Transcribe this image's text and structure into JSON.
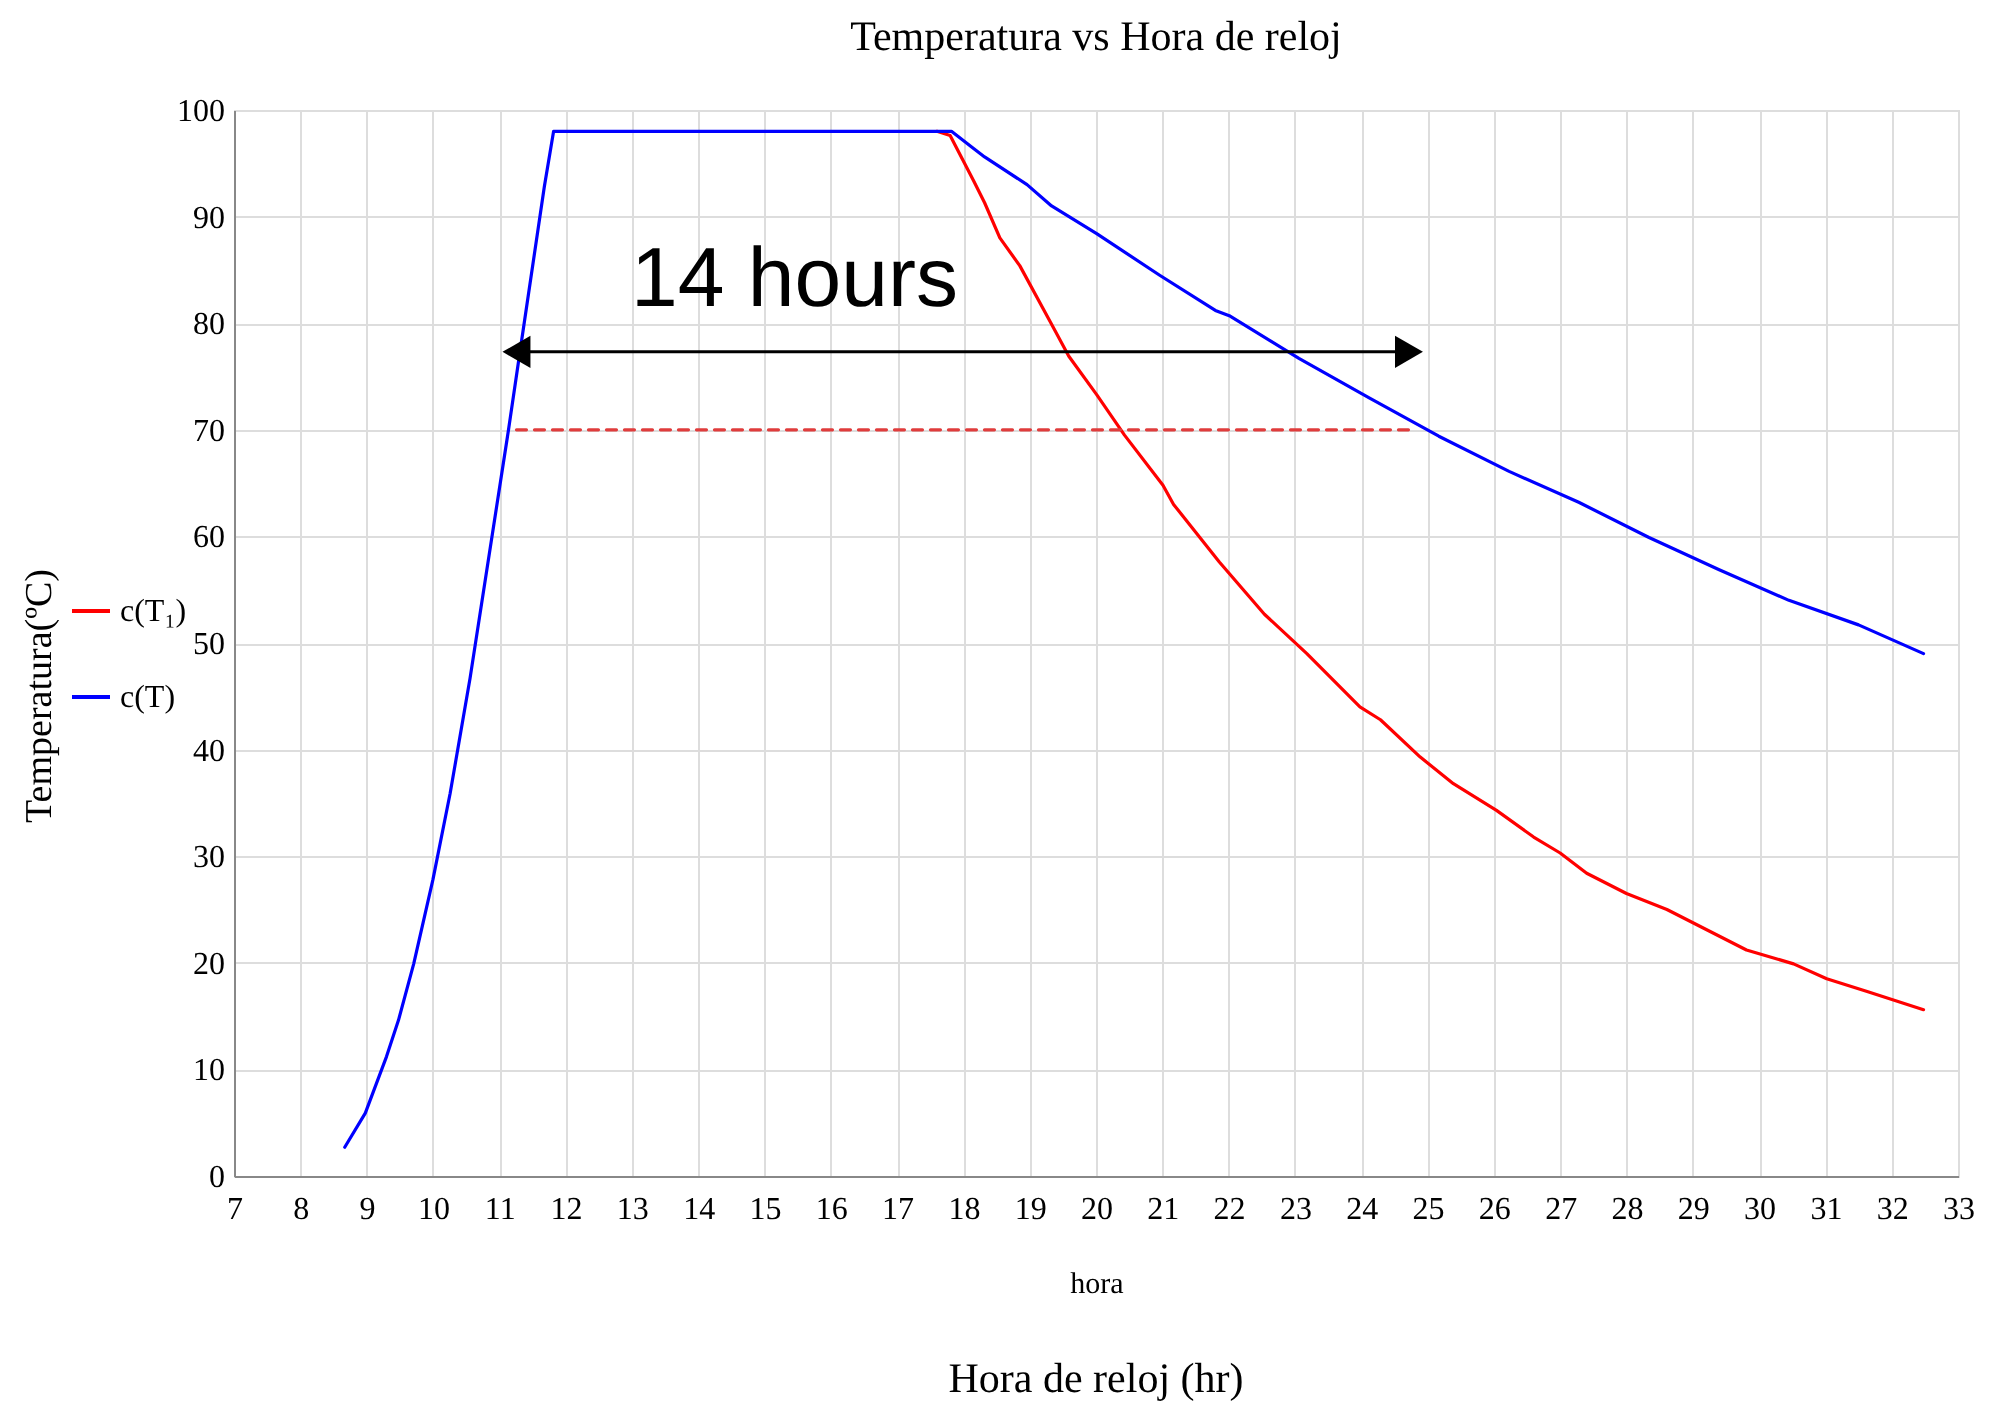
{
  "chart_data": {
    "type": "line",
    "title": "Temperatura vs Hora de reloj",
    "xlabel": "hora",
    "ylabel": "Temperatura(ºC)",
    "annotations": [
      "14 hours",
      "Hora de reloj (hr)"
    ],
    "xlim": [
      7,
      33
    ],
    "ylim": [
      0,
      100
    ],
    "xticks": [
      7,
      8,
      9,
      10,
      11,
      12,
      13,
      14,
      15,
      16,
      17,
      18,
      19,
      20,
      21,
      22,
      23,
      24,
      25,
      26,
      27,
      28,
      29,
      30,
      31,
      32,
      33
    ],
    "yticks": [
      0,
      10,
      20,
      30,
      40,
      50,
      60,
      70,
      80,
      90,
      100
    ],
    "grid": true,
    "legend": "left",
    "series": [
      {
        "name": "c(T₁)",
        "color": "#ff0000",
        "x": [
          17.6,
          17.8,
          18.15,
          18.32,
          18.55,
          18.85,
          19.33,
          19.59,
          20.01,
          20.43,
          21.01,
          21.17,
          21.86,
          22.54,
          23.18,
          23.98,
          24.29,
          24.89,
          25.39,
          26.04,
          26.6,
          27.0,
          27.4,
          28.0,
          28.61,
          29.21,
          29.81,
          30.52,
          31.02,
          31.63,
          32.48
        ],
        "values": [
          98,
          97.6,
          93.4,
          91.3,
          88.0,
          85.4,
          79.9,
          76.9,
          73.3,
          69.5,
          64.8,
          63.0,
          57.6,
          52.7,
          49.0,
          44.0,
          42.8,
          39.3,
          36.8,
          34.3,
          31.8,
          30.3,
          28.4,
          26.5,
          25.0,
          23.1,
          21.2,
          19.9,
          18.5,
          17.3,
          15.6
        ]
      },
      {
        "name": "c(T)",
        "color": "#0000ff",
        "x": [
          8.67,
          8.98,
          9.3,
          9.48,
          9.71,
          10.0,
          10.26,
          10.56,
          11.14,
          11.31,
          11.68,
          11.82,
          17.82,
          18.11,
          18.32,
          18.96,
          19.33,
          20.01,
          20.96,
          21.8,
          22.01,
          23.06,
          24.12,
          25.17,
          26.23,
          27.28,
          28.34,
          29.39,
          30.45,
          31.5,
          32.48
        ],
        "values": [
          2.7,
          5.9,
          11.2,
          14.6,
          19.9,
          27.8,
          35.9,
          46.7,
          70,
          77.2,
          92.8,
          98,
          98,
          96.6,
          95.6,
          93.0,
          91.0,
          88.4,
          84.5,
          81.2,
          80.7,
          76.7,
          73.0,
          69.4,
          66.1,
          63.2,
          59.9,
          56.9,
          54.0,
          51.7,
          49.0
        ]
      },
      {
        "color": "#e03c3c",
        "line_style": "dashed",
        "x": [
          11.26,
          24.72
        ],
        "values": [
          70,
          70
        ]
      }
    ]
  }
}
